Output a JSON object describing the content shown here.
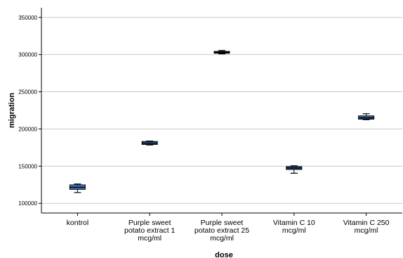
{
  "chart_data": {
    "type": "boxplot",
    "title": "",
    "xlabel": "dose",
    "ylabel": "migration",
    "ylim": [
      87000,
      363000
    ],
    "yticks": [
      100000,
      150000,
      200000,
      250000,
      300000,
      350000
    ],
    "ytick_labels": [
      "100000",
      "150000",
      "200000",
      "250000",
      "300000",
      "350000"
    ],
    "grid": "horizontal",
    "box_color": "#4a86d8",
    "categories": [
      [
        "kontrol"
      ],
      [
        "Purple sweet",
        "potato extract  1",
        "mcg/ml"
      ],
      [
        "Purple sweet",
        "potato extract  25",
        "mcg/ml"
      ],
      [
        "Vitamin C 10",
        "mcg/ml"
      ],
      [
        "Vitamin C 250",
        "mcg/ml"
      ]
    ],
    "boxes": [
      {
        "min": 114500,
        "q1": 118800,
        "median": 121500,
        "q3": 124800,
        "max": 126000
      },
      {
        "min": 178500,
        "q1": 179200,
        "median": 181000,
        "q3": 183200,
        "max": 183800
      },
      {
        "min": 301000,
        "q1": 301800,
        "median": 303000,
        "q3": 304300,
        "max": 305500
      },
      {
        "min": 140500,
        "q1": 145500,
        "median": 147500,
        "q3": 149500,
        "max": 150500
      },
      {
        "min": 212500,
        "q1": 213200,
        "median": 215000,
        "q3": 217600,
        "max": 220500
      }
    ]
  }
}
